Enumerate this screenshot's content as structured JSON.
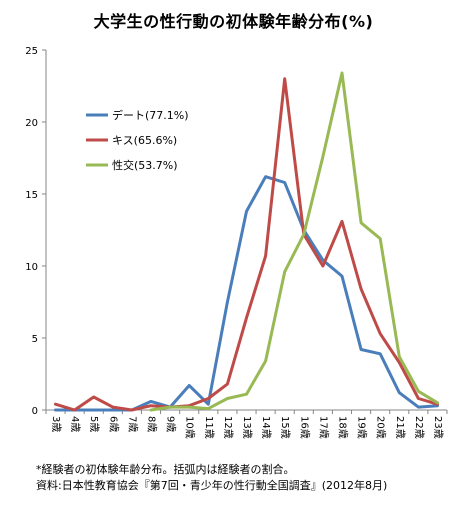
{
  "title": "大学生の性行動の初体験年齢分布(%)",
  "notes": [
    "*経験者の初体験年齢分布。括弧内は経験者の割合。",
    "資料:日本性教育協会『第7回・青少年の性行動全国調査』(2012年8月)"
  ],
  "chart_data": {
    "type": "line",
    "title": "大学生の性行動の初体験年齢分布(%)",
    "xlabel": "",
    "ylabel": "",
    "categories": [
      "3歳",
      "4歳",
      "5歳",
      "6歳",
      "7歳",
      "8歳",
      "9歳",
      "10歳",
      "11歳",
      "12歳",
      "13歳",
      "14歳",
      "15歳",
      "16歳",
      "17歳",
      "18歳",
      "19歳",
      "20歳",
      "21歳",
      "22歳",
      "23歳"
    ],
    "ylim": [
      0,
      25
    ],
    "yticks": [
      0,
      5,
      10,
      15,
      20,
      25
    ],
    "grid": false,
    "legend_position": "upper-left",
    "series": [
      {
        "name": "デート(77.1%)",
        "color": "#4a7ebb",
        "values": [
          0,
          0,
          0,
          0,
          0,
          0.6,
          0.2,
          1.7,
          0.4,
          7.5,
          13.8,
          16.2,
          15.8,
          12.5,
          10.4,
          9.3,
          4.2,
          3.9,
          1.2,
          0.2,
          0.3
        ]
      },
      {
        "name": "キス(65.6%)",
        "color": "#be4b48",
        "values": [
          0.4,
          0,
          0.9,
          0.2,
          0,
          0.3,
          0.2,
          0.3,
          0.8,
          1.8,
          6.4,
          10.7,
          23.0,
          12.2,
          10.0,
          13.1,
          8.4,
          5.3,
          3.3,
          0.8,
          0.4
        ]
      },
      {
        "name": "性交(53.7%)",
        "color": "#98b954",
        "values": [
          null,
          null,
          null,
          null,
          null,
          0,
          0.2,
          0.2,
          0.1,
          0.8,
          1.1,
          3.4,
          9.6,
          12.2,
          17.6,
          23.4,
          13.0,
          11.9,
          3.7,
          1.3,
          0.5
        ]
      }
    ]
  }
}
